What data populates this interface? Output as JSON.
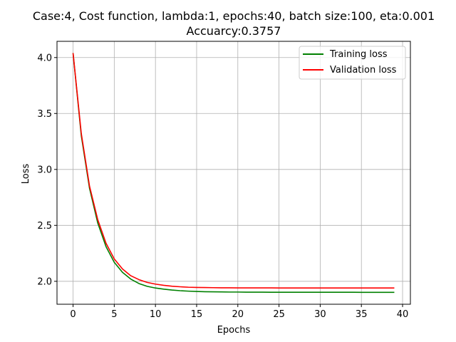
{
  "chart_data": {
    "type": "line",
    "title_line1": "Case:4, Cost function, lambda:1, epochs:40, batch size:100, eta:0.001",
    "title_line2": "Accuarcy:0.3757",
    "xlabel": "Epochs",
    "ylabel": "Loss",
    "xlim": [
      -1.95,
      40.95
    ],
    "ylim": [
      1.795,
      4.145
    ],
    "xticks": [
      0,
      5,
      10,
      15,
      20,
      25,
      30,
      35,
      40
    ],
    "xtick_labels": [
      "0",
      "5",
      "10",
      "15",
      "20",
      "25",
      "30",
      "35",
      "40"
    ],
    "yticks": [
      2.0,
      2.5,
      3.0,
      3.5,
      4.0
    ],
    "ytick_labels": [
      "2.0",
      "2.5",
      "3.0",
      "3.5",
      "4.0"
    ],
    "grid": true,
    "legend_position": "top-right",
    "x": [
      0,
      1,
      2,
      3,
      4,
      5,
      6,
      7,
      8,
      9,
      10,
      11,
      12,
      13,
      14,
      15,
      16,
      17,
      18,
      19,
      20,
      21,
      22,
      23,
      24,
      25,
      26,
      27,
      28,
      29,
      30,
      31,
      32,
      33,
      34,
      35,
      36,
      37,
      38,
      39
    ],
    "series": [
      {
        "name": "Training loss",
        "color": "#008000",
        "values": [
          4.04,
          3.3,
          2.83,
          2.52,
          2.31,
          2.17,
          2.08,
          2.02,
          1.98,
          1.955,
          1.94,
          1.93,
          1.922,
          1.916,
          1.912,
          1.909,
          1.907,
          1.906,
          1.905,
          1.904,
          1.904,
          1.903,
          1.903,
          1.903,
          1.902,
          1.902,
          1.902,
          1.902,
          1.902,
          1.902,
          1.902,
          1.902,
          1.902,
          1.902,
          1.902,
          1.901,
          1.901,
          1.901,
          1.901,
          1.901
        ]
      },
      {
        "name": "Validation loss",
        "color": "#ff0000",
        "values": [
          4.04,
          3.32,
          2.85,
          2.55,
          2.34,
          2.2,
          2.11,
          2.05,
          2.015,
          1.99,
          1.975,
          1.964,
          1.956,
          1.951,
          1.947,
          1.945,
          1.944,
          1.943,
          1.942,
          1.942,
          1.941,
          1.941,
          1.941,
          1.941,
          1.941,
          1.94,
          1.94,
          1.94,
          1.94,
          1.94,
          1.94,
          1.94,
          1.94,
          1.94,
          1.94,
          1.94,
          1.94,
          1.94,
          1.94,
          1.94
        ]
      }
    ]
  }
}
